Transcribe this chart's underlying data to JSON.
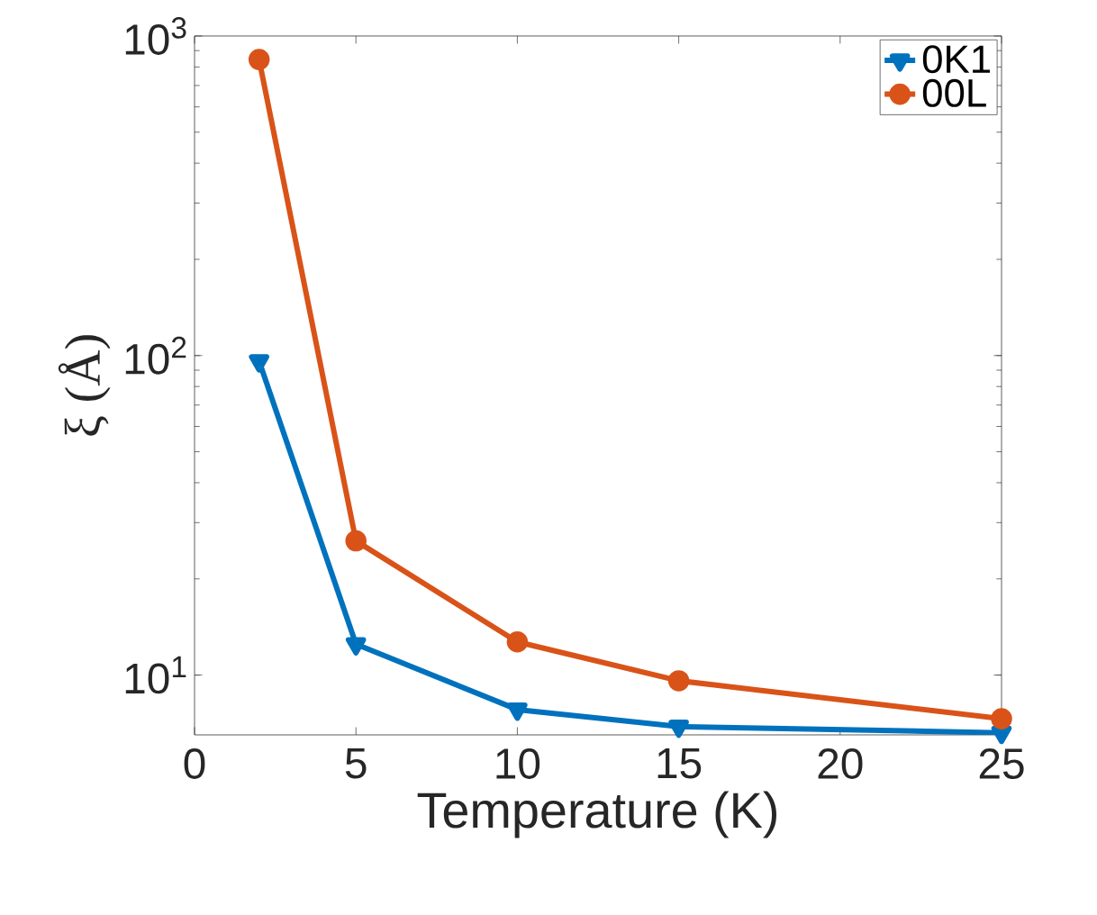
{
  "chart_data": {
    "type": "line",
    "xlabel": "Temperature (K)",
    "ylabel": "ξ (Å)",
    "x": [
      2,
      5,
      10,
      15,
      25
    ],
    "log": "y",
    "xlim": [
      0,
      25
    ],
    "ylim": [
      6.5,
      1000
    ],
    "xticks": [
      0,
      5,
      10,
      15,
      20,
      25
    ],
    "yticks": [
      {
        "value": 10,
        "label": "10$^{1}$"
      },
      {
        "value": 100,
        "label": "10$^{2}$"
      },
      {
        "value": 1000,
        "label": "10$^{3}$"
      }
    ],
    "legend": "top right",
    "grid": false,
    "line_style": "solid",
    "series": [
      {
        "name": "0K1",
        "color": "#0072bd",
        "marker": "triangle",
        "values": [
          96,
          12.5,
          7.8,
          6.9,
          6.6
        ]
      },
      {
        "name": "00L",
        "color": "#d95319",
        "marker": "circle",
        "values": [
          844,
          26.3,
          12.7,
          9.6,
          7.3
        ]
      }
    ]
  }
}
